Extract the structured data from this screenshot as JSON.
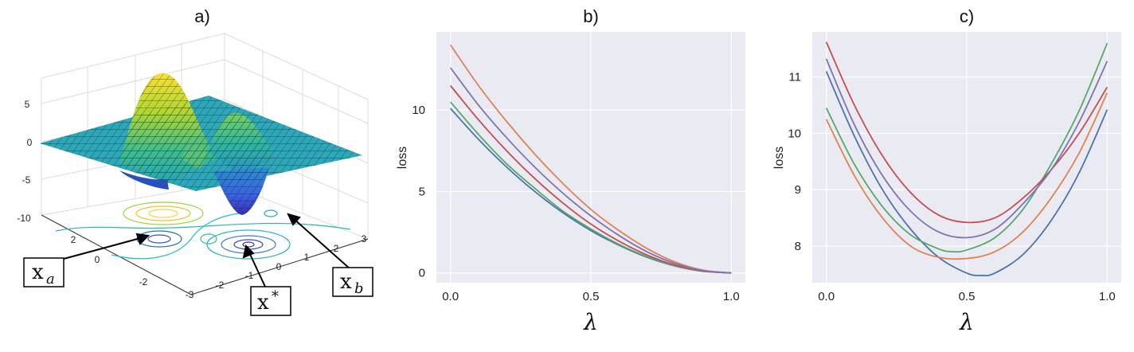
{
  "panels": {
    "a": {
      "title": "a)",
      "z_ticks": [
        "5",
        "0",
        "-5",
        "-10"
      ],
      "left_ticks": [
        "2",
        "0",
        "-2"
      ],
      "front_ticks": [
        "-3",
        "-2",
        "-1",
        "0",
        "1",
        "2",
        "3"
      ],
      "labels": [
        {
          "main": "x",
          "sub": "a",
          "sup": ""
        },
        {
          "main": "x",
          "sub": "",
          "sup": "*"
        },
        {
          "main": "x",
          "sub": "b",
          "sup": ""
        }
      ]
    },
    "b": {
      "title": "b)"
    },
    "c": {
      "title": "c)"
    }
  },
  "colors": {
    "plot_bg": "#eaeaf2",
    "grid": "#ffffff",
    "series": [
      "#4c72b0",
      "#dd8452",
      "#55a868",
      "#c44e52",
      "#8172b3"
    ]
  },
  "chart_data": [
    {
      "type": "line",
      "title": "b)",
      "xlabel": "λ",
      "ylabel": "loss",
      "xlim": [
        -0.05,
        1.05
      ],
      "ylim": [
        -0.6,
        14.8
      ],
      "xticks": [
        0.0,
        0.5,
        1.0
      ],
      "xtick_labels": [
        "0.0",
        "0.5",
        "1.0"
      ],
      "yticks": [
        0,
        5,
        10
      ],
      "ytick_labels": [
        "0",
        "5",
        "10"
      ],
      "grid": true,
      "series": [
        {
          "color": "#4c72b0",
          "x": [
            0,
            0.1,
            0.2,
            0.3,
            0.4,
            0.5,
            0.6,
            0.7,
            0.8,
            0.9,
            1.0
          ],
          "y": [
            10.1,
            8.2,
            6.5,
            5.0,
            3.7,
            2.6,
            1.7,
            0.96,
            0.42,
            0.1,
            0.0
          ]
        },
        {
          "color": "#dd8452",
          "x": [
            0,
            0.1,
            0.2,
            0.3,
            0.4,
            0.5,
            0.6,
            0.7,
            0.8,
            0.9,
            1.0
          ],
          "y": [
            14.0,
            11.5,
            9.3,
            7.3,
            5.5,
            3.9,
            2.6,
            1.5,
            0.67,
            0.17,
            0.0
          ]
        },
        {
          "color": "#55a868",
          "x": [
            0,
            0.1,
            0.2,
            0.3,
            0.4,
            0.5,
            0.6,
            0.7,
            0.8,
            0.9,
            1.0
          ],
          "y": [
            10.5,
            8.5,
            6.7,
            5.2,
            3.8,
            2.7,
            1.75,
            1.0,
            0.44,
            0.11,
            0.0
          ]
        },
        {
          "color": "#c44e52",
          "x": [
            0,
            0.1,
            0.2,
            0.3,
            0.4,
            0.5,
            0.6,
            0.7,
            0.8,
            0.9,
            1.0
          ],
          "y": [
            11.5,
            9.4,
            7.5,
            5.8,
            4.3,
            3.0,
            1.95,
            1.1,
            0.48,
            0.12,
            0.0
          ]
        },
        {
          "color": "#8172b3",
          "x": [
            0,
            0.1,
            0.2,
            0.3,
            0.4,
            0.5,
            0.6,
            0.7,
            0.8,
            0.9,
            1.0
          ],
          "y": [
            12.6,
            10.3,
            8.3,
            6.5,
            4.9,
            3.5,
            2.3,
            1.3,
            0.58,
            0.14,
            0.0
          ]
        }
      ]
    },
    {
      "type": "line",
      "title": "c)",
      "xlabel": "λ",
      "ylabel": "loss",
      "xlim": [
        -0.05,
        1.05
      ],
      "ylim": [
        7.35,
        11.8
      ],
      "xticks": [
        0.0,
        0.5,
        1.0
      ],
      "xtick_labels": [
        "0.0",
        "0.5",
        "1.0"
      ],
      "yticks": [
        8,
        9,
        10,
        11
      ],
      "ytick_labels": [
        "8",
        "9",
        "10",
        "11"
      ],
      "grid": true,
      "series": [
        {
          "color": "#4c72b0",
          "x": [
            0,
            0.1,
            0.2,
            0.3,
            0.4,
            0.5,
            0.55,
            0.6,
            0.7,
            0.8,
            0.9,
            1.0
          ],
          "y": [
            11.1,
            9.95,
            9.0,
            8.3,
            7.8,
            7.52,
            7.48,
            7.52,
            7.85,
            8.45,
            9.3,
            10.42
          ]
        },
        {
          "color": "#dd8452",
          "x": [
            0,
            0.1,
            0.2,
            0.3,
            0.4,
            0.5,
            0.6,
            0.7,
            0.8,
            0.9,
            1.0
          ],
          "y": [
            10.25,
            9.25,
            8.5,
            8.0,
            7.8,
            7.78,
            7.9,
            8.25,
            8.85,
            9.65,
            10.72
          ]
        },
        {
          "color": "#55a868",
          "x": [
            0,
            0.1,
            0.2,
            0.3,
            0.4,
            0.45,
            0.5,
            0.6,
            0.7,
            0.8,
            0.9,
            1.0
          ],
          "y": [
            10.45,
            9.45,
            8.7,
            8.2,
            7.95,
            7.9,
            7.93,
            8.15,
            8.65,
            9.45,
            10.4,
            11.6
          ]
        },
        {
          "color": "#c44e52",
          "x": [
            0,
            0.1,
            0.2,
            0.3,
            0.4,
            0.5,
            0.6,
            0.7,
            0.8,
            0.9,
            1.0
          ],
          "y": [
            11.62,
            10.5,
            9.6,
            8.95,
            8.55,
            8.42,
            8.5,
            8.85,
            9.35,
            10.0,
            10.82
          ]
        },
        {
          "color": "#8172b3",
          "x": [
            0,
            0.1,
            0.2,
            0.3,
            0.4,
            0.5,
            0.6,
            0.7,
            0.8,
            0.9,
            1.0
          ],
          "y": [
            11.32,
            10.15,
            9.25,
            8.62,
            8.25,
            8.15,
            8.3,
            8.75,
            9.35,
            10.2,
            11.28
          ]
        }
      ]
    }
  ]
}
